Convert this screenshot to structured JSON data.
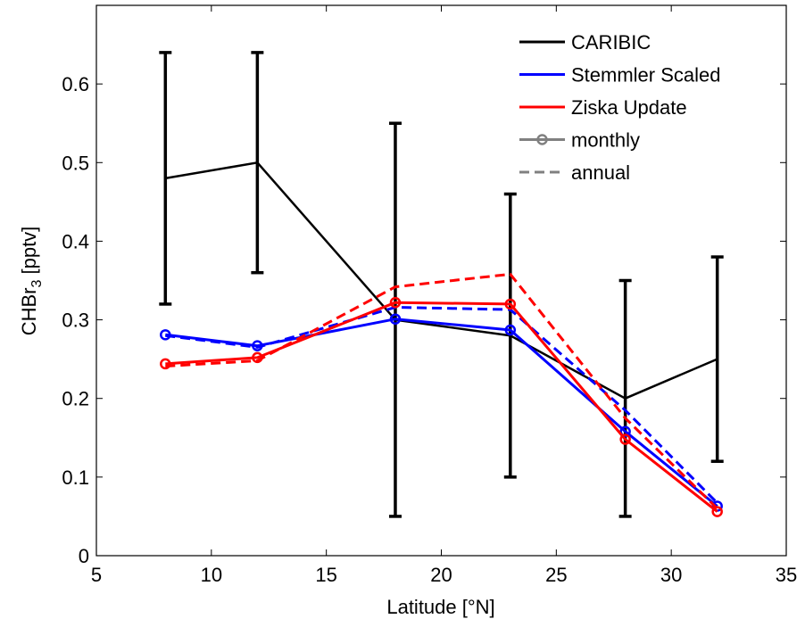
{
  "chart_data": {
    "type": "line",
    "xlabel": "Latitude [°N]",
    "ylabel": {
      "main": "CHBr",
      "sub": "3",
      "rest": " [pptv]"
    },
    "xlim": [
      5,
      35
    ],
    "ylim": [
      0,
      0.7
    ],
    "xticks": [
      "5",
      "10",
      "15",
      "20",
      "25",
      "30",
      "35"
    ],
    "yticks": [
      "0",
      "0.1",
      "0.2",
      "0.3",
      "0.4",
      "0.5",
      "0.6"
    ],
    "grid": false,
    "legend_position": "top-right",
    "legend": [
      {
        "label": "CARIBIC",
        "color": "#000000",
        "style": "solid",
        "marker": false
      },
      {
        "label": "Stemmler Scaled",
        "color": "#0000ff",
        "style": "solid",
        "marker": false
      },
      {
        "label": "Ziska Update",
        "color": "#ff0000",
        "style": "solid",
        "marker": false
      },
      {
        "label": "monthly",
        "color": "#808080",
        "style": "solid",
        "marker": true
      },
      {
        "label": "annual",
        "color": "#808080",
        "style": "dashed",
        "marker": false
      }
    ],
    "series": [
      {
        "name": "CARIBIC",
        "color": "#000000",
        "style": "solid",
        "marker": false,
        "x": [
          8,
          12,
          18,
          23,
          28,
          32
        ],
        "y": [
          0.48,
          0.5,
          0.3,
          0.28,
          0.2,
          0.25
        ],
        "err_low": [
          0.32,
          0.36,
          0.05,
          0.1,
          0.05,
          0.12
        ],
        "err_high": [
          0.64,
          0.64,
          0.55,
          0.46,
          0.35,
          0.38
        ]
      },
      {
        "name": "Stemmler Scaled monthly",
        "color": "#0000ff",
        "style": "solid",
        "marker": true,
        "x": [
          8,
          12,
          18,
          23,
          28,
          32
        ],
        "y": [
          0.281,
          0.267,
          0.301,
          0.287,
          0.158,
          0.063
        ]
      },
      {
        "name": "Stemmler Scaled annual",
        "color": "#0000ff",
        "style": "dashed",
        "marker": false,
        "x": [
          8,
          12,
          18,
          23,
          28,
          32
        ],
        "y": [
          0.28,
          0.265,
          0.316,
          0.313,
          0.185,
          0.067
        ]
      },
      {
        "name": "Ziska Update monthly",
        "color": "#ff0000",
        "style": "solid",
        "marker": true,
        "x": [
          8,
          12,
          18,
          23,
          28,
          32
        ],
        "y": [
          0.244,
          0.252,
          0.322,
          0.32,
          0.148,
          0.056
        ]
      },
      {
        "name": "Ziska Update annual",
        "color": "#ff0000",
        "style": "dashed",
        "marker": false,
        "x": [
          8,
          12,
          18,
          23,
          28,
          32
        ],
        "y": [
          0.241,
          0.248,
          0.342,
          0.358,
          0.175,
          0.06
        ]
      }
    ]
  }
}
